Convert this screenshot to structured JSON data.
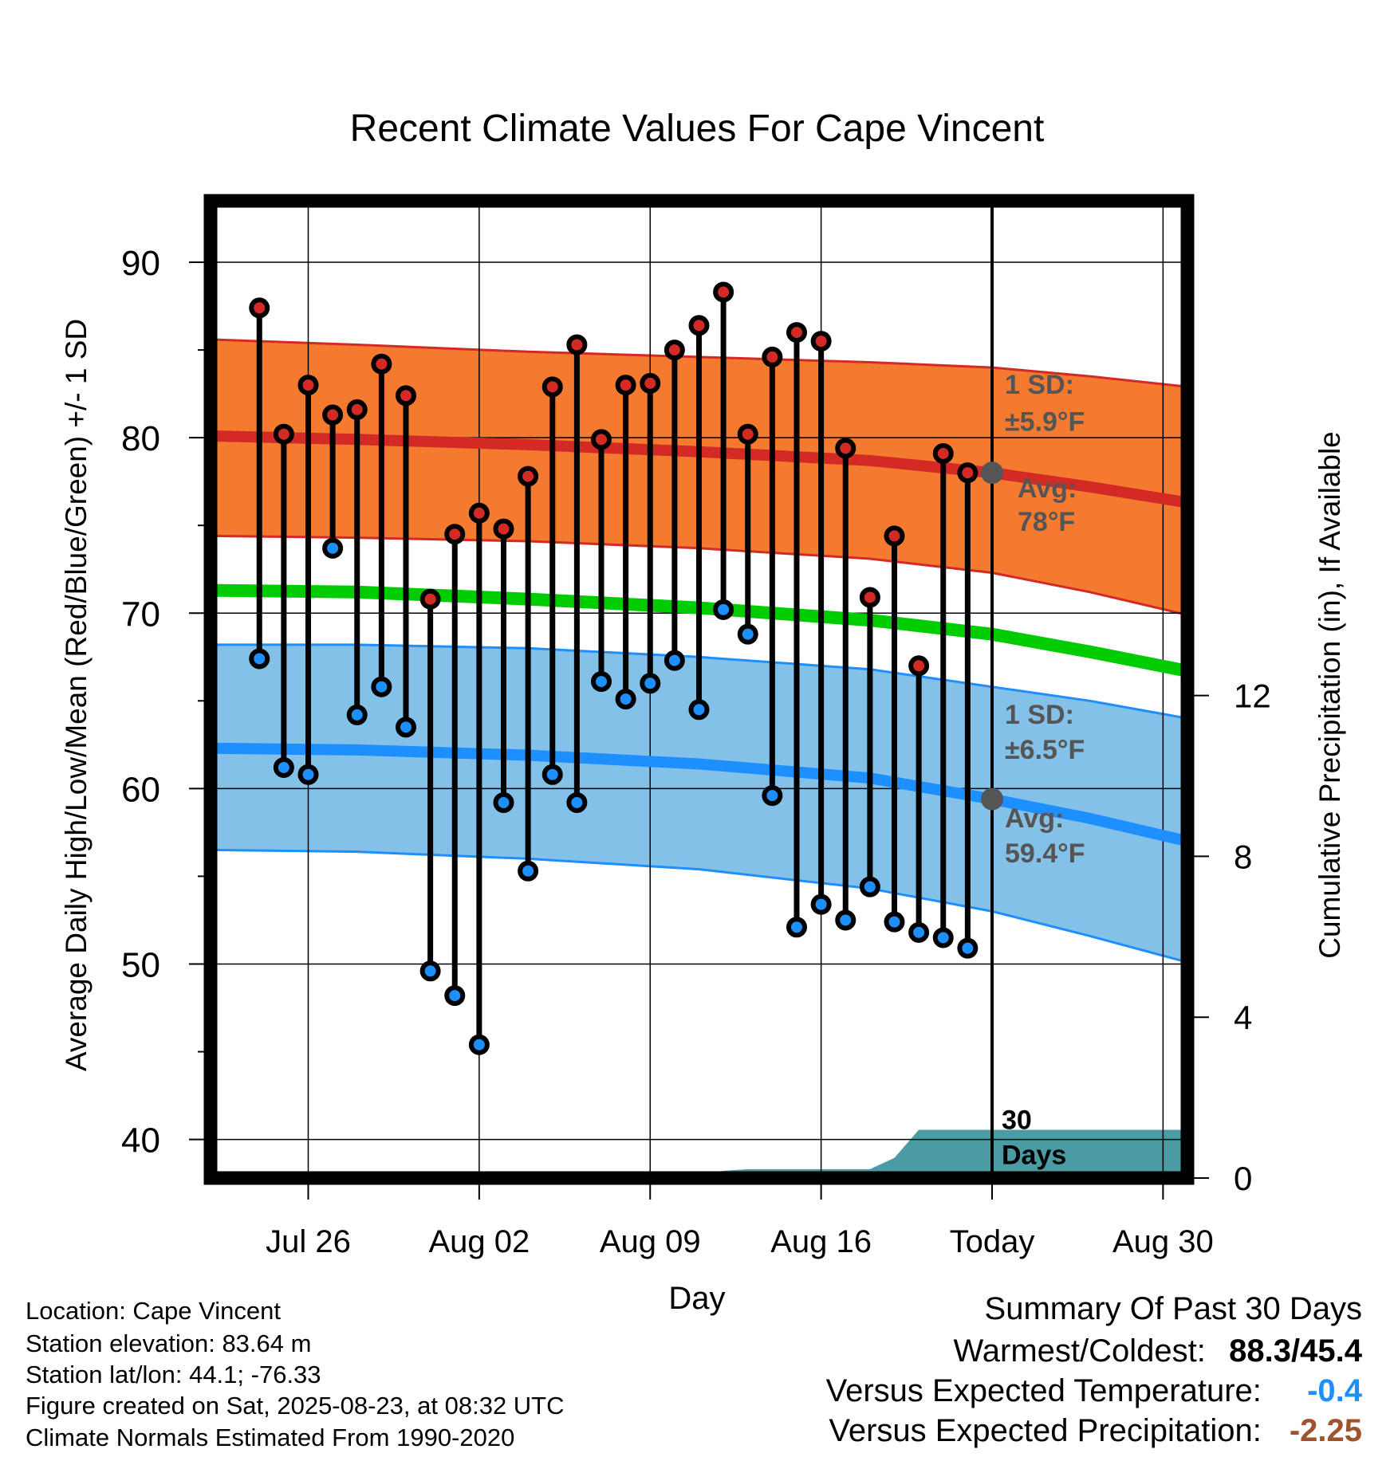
{
  "chart_data": {
    "type": "line",
    "title": "Recent Climate Values For Cape Vincent",
    "xlabel": "Day",
    "ylabel": "Average Daily High/Low/Mean (Red/Blue/Green) +/- 1 SD",
    "y2label": "Cumulative Precipitation (in), If Available",
    "ylim": [
      37.8,
      93.5
    ],
    "y2lim": [
      0,
      24.3
    ],
    "xlim": [
      "2025-07-22",
      "2025-08-31"
    ],
    "yticks": [
      "40",
      "50",
      "60",
      "70",
      "80",
      "90"
    ],
    "y2ticks": [
      "0",
      "4",
      "8",
      "12"
    ],
    "xticks": [
      {
        "date": "2025-07-26",
        "label": "Jul 26"
      },
      {
        "date": "2025-08-02",
        "label": "Aug 02"
      },
      {
        "date": "2025-08-09",
        "label": "Aug 09"
      },
      {
        "date": "2025-08-16",
        "label": "Aug 16"
      },
      {
        "date": "2025-08-23",
        "label": "Today"
      },
      {
        "date": "2025-08-30",
        "label": "Aug 30"
      }
    ],
    "grid": true,
    "today": "2025-08-23",
    "daily": {
      "dates": [
        "2025-07-24",
        "2025-07-25",
        "2025-07-26",
        "2025-07-27",
        "2025-07-28",
        "2025-07-29",
        "2025-07-30",
        "2025-07-31",
        "2025-08-01",
        "2025-08-02",
        "2025-08-03",
        "2025-08-04",
        "2025-08-05",
        "2025-08-06",
        "2025-08-07",
        "2025-08-08",
        "2025-08-09",
        "2025-08-10",
        "2025-08-11",
        "2025-08-12",
        "2025-08-13",
        "2025-08-14",
        "2025-08-15",
        "2025-08-16",
        "2025-08-17",
        "2025-08-18",
        "2025-08-19",
        "2025-08-20",
        "2025-08-21",
        "2025-08-22"
      ],
      "highs": [
        87.4,
        80.2,
        83.0,
        81.3,
        81.6,
        84.2,
        82.4,
        70.8,
        74.5,
        75.7,
        74.8,
        77.8,
        82.9,
        85.3,
        79.9,
        83.0,
        83.1,
        85.0,
        86.4,
        88.3,
        80.2,
        84.6,
        86.0,
        85.5,
        79.4,
        70.9,
        74.4,
        67.0,
        79.1,
        78.0
      ],
      "lows": [
        67.4,
        61.2,
        60.8,
        73.7,
        64.2,
        65.8,
        63.5,
        49.6,
        48.2,
        45.4,
        59.2,
        55.3,
        60.8,
        59.2,
        66.1,
        65.1,
        66.0,
        67.3,
        64.5,
        70.2,
        68.8,
        59.6,
        52.1,
        53.4,
        52.5,
        54.4,
        52.4,
        51.8,
        51.5,
        50.9
      ]
    },
    "normals": {
      "dates": [
        "2025-07-22",
        "2025-07-28",
        "2025-08-04",
        "2025-08-11",
        "2025-08-18",
        "2025-08-23",
        "2025-08-27",
        "2025-08-31"
      ],
      "avg_high": [
        80.1,
        79.9,
        79.6,
        79.2,
        78.7,
        78.0,
        77.2,
        76.3
      ],
      "avg_high_upper": [
        85.6,
        85.3,
        84.9,
        84.6,
        84.3,
        84.0,
        83.5,
        82.9
      ],
      "avg_high_lower": [
        74.4,
        74.3,
        74.1,
        73.7,
        73.1,
        72.3,
        71.2,
        69.9
      ],
      "avg_low": [
        62.3,
        62.2,
        61.9,
        61.4,
        60.6,
        59.4,
        58.3,
        57.0
      ],
      "avg_low_upper": [
        68.2,
        68.2,
        68.0,
        67.5,
        66.8,
        65.8,
        65.0,
        64.0
      ],
      "avg_low_lower": [
        56.5,
        56.4,
        56.0,
        55.4,
        54.3,
        53.0,
        51.6,
        50.1
      ],
      "avg_mean": [
        71.3,
        71.2,
        70.8,
        70.3,
        69.6,
        68.8,
        67.8,
        66.7
      ]
    },
    "precip": {
      "dates": [
        "2025-07-22",
        "2025-07-25",
        "2025-07-26",
        "2025-07-31",
        "2025-08-01",
        "2025-08-11",
        "2025-08-12",
        "2025-08-13",
        "2025-08-18",
        "2025-08-19",
        "2025-08-20",
        "2025-08-21",
        "2025-08-22",
        "2025-08-31"
      ],
      "values": [
        0.0,
        0.0,
        0.05,
        0.05,
        0.08,
        0.08,
        0.18,
        0.22,
        0.22,
        0.5,
        1.2,
        1.2,
        1.2,
        1.2
      ]
    },
    "annotations": {
      "high_sd_line1": "1 SD:",
      "high_sd_line2": "±5.9°F",
      "high_avg_line1": "Avg:",
      "high_avg_line2": "78°F",
      "low_sd_line1": "1 SD:",
      "low_sd_line2": "±6.5°F",
      "low_avg_line1": "Avg:",
      "low_avg_line2": "59.4°F",
      "days_line1": "30",
      "days_line2": "Days",
      "high_avg_today": 78.0,
      "low_avg_today": 59.4
    },
    "colors": {
      "high_band": "#f47a30",
      "high_avg_line": "#d42a26",
      "high_marker": "#d42a26",
      "low_band": "#83c1e8",
      "low_avg_line": "#1e8fff",
      "low_marker": "#1e8fff",
      "mean_line": "#00cc00",
      "precip_fill": "#4a9ba3",
      "annotation_text": "#555555"
    }
  },
  "info": {
    "location": "Location: Cape Vincent",
    "elevation": "Station elevation: 83.64 m",
    "latlon": "Station lat/lon: 44.1; -76.33",
    "created": "Figure created on Sat, 2025-08-23, at 08:32 UTC",
    "normals": "Climate Normals Estimated From 1990-2020"
  },
  "summary": {
    "title": "Summary Of Past 30 Days",
    "warmest_label": "Warmest/Coldest:",
    "warmest_value": "88.3/45.4",
    "temp_label": "Versus Expected Temperature:",
    "temp_value": "-0.4",
    "temp_color": "#1e8fff",
    "precip_label": "Versus Expected Precipitation:",
    "precip_value": "-2.25",
    "precip_color": "#a0522d"
  }
}
